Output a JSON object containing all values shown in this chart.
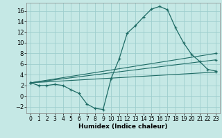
{
  "xlabel": "Humidex (Indice chaleur)",
  "bg_color": "#c5e8e5",
  "grid_color": "#9ecece",
  "line_color": "#1e6b65",
  "xlim": [
    -0.5,
    23.5
  ],
  "ylim": [
    -3.2,
    17.5
  ],
  "xticks": [
    0,
    1,
    2,
    3,
    4,
    5,
    6,
    7,
    8,
    9,
    10,
    11,
    12,
    13,
    14,
    15,
    16,
    17,
    18,
    19,
    20,
    21,
    22,
    23
  ],
  "yticks": [
    -2,
    0,
    2,
    4,
    6,
    8,
    10,
    12,
    14,
    16
  ],
  "line1_x": [
    0,
    1,
    2,
    3,
    4,
    5,
    6,
    7,
    8,
    9,
    10,
    11,
    12,
    13,
    14,
    15,
    16,
    17,
    18,
    19,
    20,
    21,
    22,
    23
  ],
  "line1_y": [
    2.5,
    2.0,
    2.0,
    2.2,
    2.0,
    1.2,
    0.5,
    -1.5,
    -2.3,
    -2.5,
    3.3,
    7.0,
    11.8,
    13.2,
    14.8,
    16.3,
    16.8,
    16.2,
    12.8,
    10.0,
    7.8,
    6.5,
    5.0,
    4.7
  ],
  "line2_x": [
    0,
    23
  ],
  "line2_y": [
    2.5,
    4.5
  ],
  "line3_x": [
    0,
    23
  ],
  "line3_y": [
    2.5,
    6.8
  ],
  "line4_x": [
    0,
    23
  ],
  "line4_y": [
    2.5,
    8.0
  ],
  "xlabel_fontsize": 6.5,
  "tick_fontsize": 5.5
}
